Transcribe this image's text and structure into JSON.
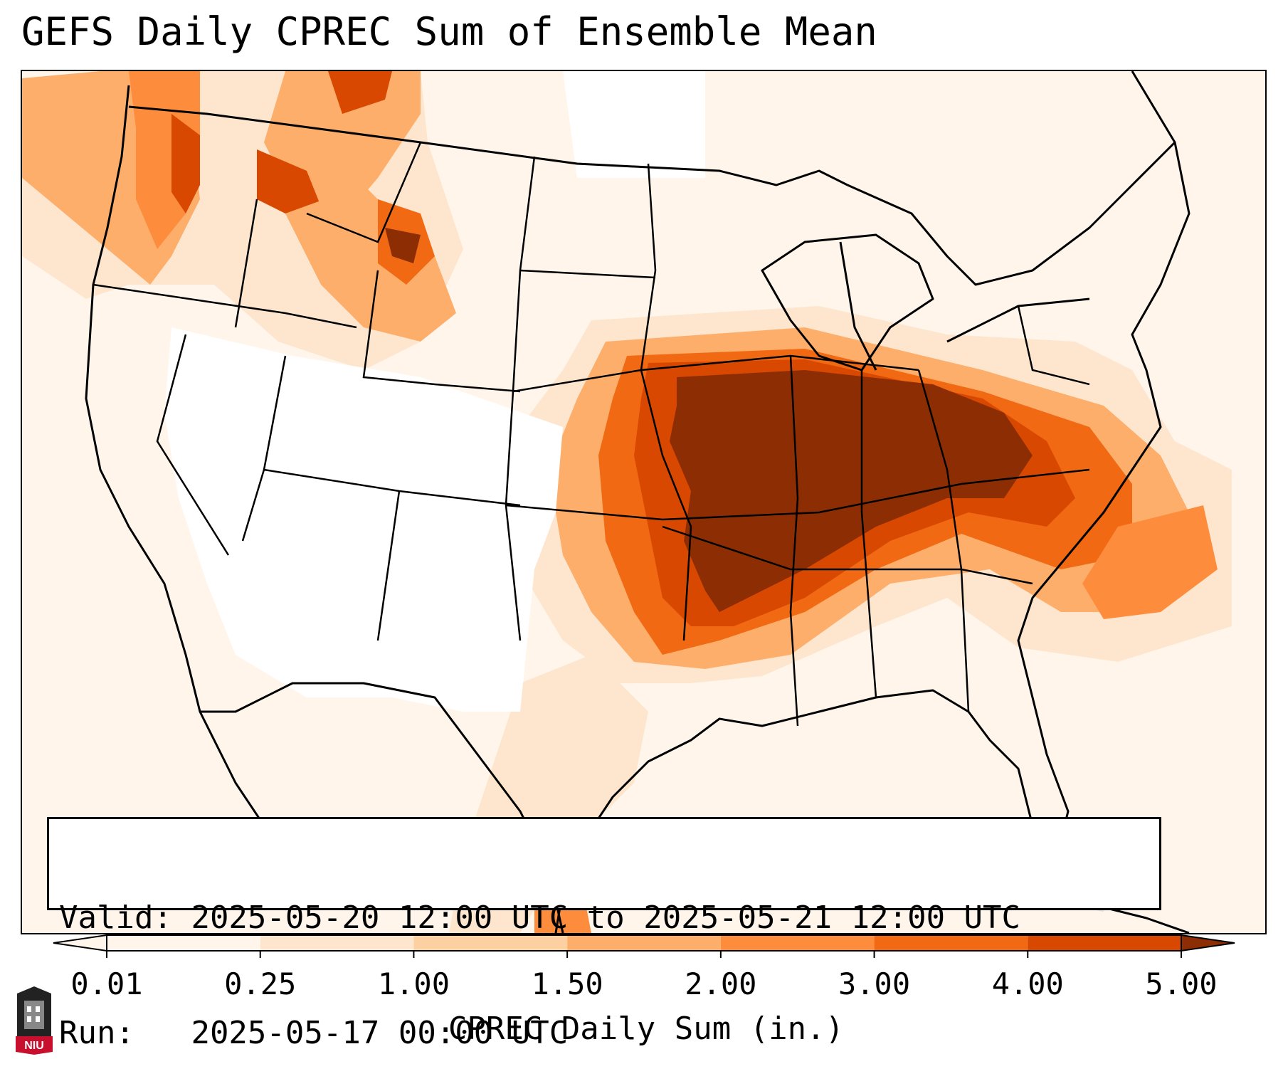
{
  "title": "GEFS Daily CPREC Sum of Ensemble Mean",
  "info": {
    "valid_label": "Valid:",
    "valid_value": "2025-05-20 12:00 UTC to 2025-05-21 12:00 UTC",
    "run_label": "Run:",
    "run_value": "2025-05-17 00:00 UTC"
  },
  "colorbar": {
    "title": "CPREC Daily Sum (in.)",
    "ticks": [
      "0.01",
      "0.25",
      "1.00",
      "1.50",
      "2.00",
      "3.00",
      "4.00",
      "5.00"
    ],
    "colors": [
      "#fff5eb",
      "#fee6ce",
      "#fdd0a2",
      "#fdae6b",
      "#fd8d3c",
      "#f16913",
      "#d94801",
      "#8c2d04"
    ],
    "extend": "both"
  },
  "logo": {
    "text": "NIU",
    "color": "#c8102e"
  },
  "map_colors": {
    "light": "#fff5eb",
    "pale": "#fee6ce",
    "tan": "#fdd0a2",
    "orange": "#fdae6b",
    "deep_orange": "#fd8d3c",
    "red_orange": "#f16913",
    "rust": "#d94801",
    "brown": "#8c2d04"
  }
}
